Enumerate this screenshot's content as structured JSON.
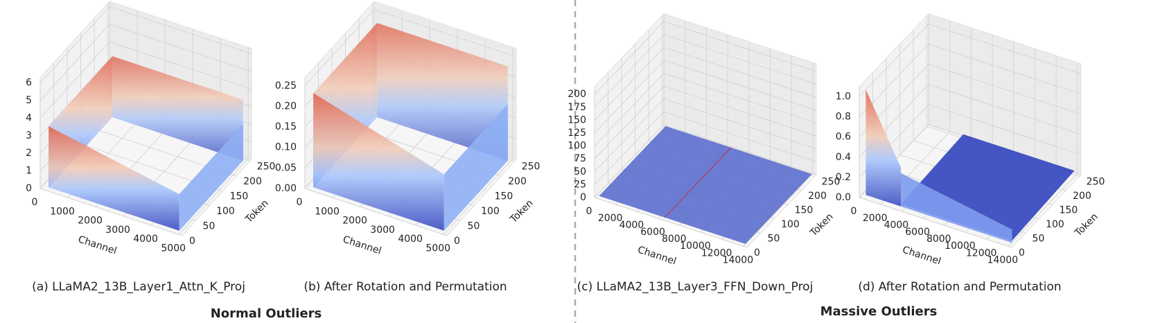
{
  "chart_data": [
    {
      "type": "surface",
      "caption": "(a) LLaMA2_13B_Layer1_Attn_K_Proj",
      "xlabel": "Channel",
      "ylabel": "Token",
      "xlim": [
        0,
        5120
      ],
      "xticks": [
        0,
        1000,
        2000,
        3000,
        4000,
        5000
      ],
      "ylim": [
        0,
        256
      ],
      "yticks": [
        0,
        50,
        100,
        150,
        200,
        250
      ],
      "zlim": [
        0,
        6.3
      ],
      "zticks": [
        0,
        1,
        2,
        3,
        4,
        5,
        6
      ]
    },
    {
      "type": "surface",
      "caption": "(b) After Rotation and Permutation",
      "xlabel": "Channel",
      "ylabel": "Token",
      "xlim": [
        0,
        5120
      ],
      "xticks": [
        0,
        1000,
        2000,
        3000,
        4000,
        5000
      ],
      "ylim": [
        0,
        256
      ],
      "yticks": [
        0,
        50,
        100,
        150,
        200,
        250
      ],
      "zlim": [
        0,
        0.27
      ],
      "zticks": [
        {
          "value": 0,
          "label": "0.00"
        },
        0.05,
        {
          "value": 0.1,
          "label": "0.10"
        },
        0.15,
        {
          "value": 0.2,
          "label": "0.20"
        },
        0.25
      ]
    },
    {
      "type": "surface",
      "caption": "(c) LLaMA2_13B_Layer3_FFN_Down_Proj",
      "xlabel": "Channel",
      "ylabel": "Token",
      "xlim": [
        0,
        14336
      ],
      "xticks": [
        0,
        2000,
        4000,
        6000,
        8000,
        10000,
        12000,
        14000
      ],
      "ylim": [
        0,
        256
      ],
      "yticks": [
        0,
        50,
        100,
        150,
        200,
        250
      ],
      "zlim": [
        0,
        215
      ],
      "zticks": [
        0,
        25,
        50,
        75,
        100,
        125,
        150,
        175,
        200
      ]
    },
    {
      "type": "surface",
      "caption": "(d) After Rotation and Permutation",
      "xlabel": "Channel",
      "ylabel": "Token",
      "xlim": [
        0,
        14336
      ],
      "xticks": [
        0,
        2000,
        4000,
        6000,
        8000,
        10000,
        12000,
        14000
      ],
      "ylim": [
        0,
        256
      ],
      "yticks": [
        0,
        50,
        100,
        150,
        200,
        250
      ],
      "zlim": [
        0,
        1.1
      ],
      "zticks": [
        {
          "value": 0,
          "label": "0.0"
        },
        0.2,
        0.4,
        0.6,
        0.8,
        {
          "value": 1,
          "label": "1.0"
        }
      ]
    }
  ],
  "group_titles": [
    "Normal Outliers",
    "Massive Outliers"
  ]
}
